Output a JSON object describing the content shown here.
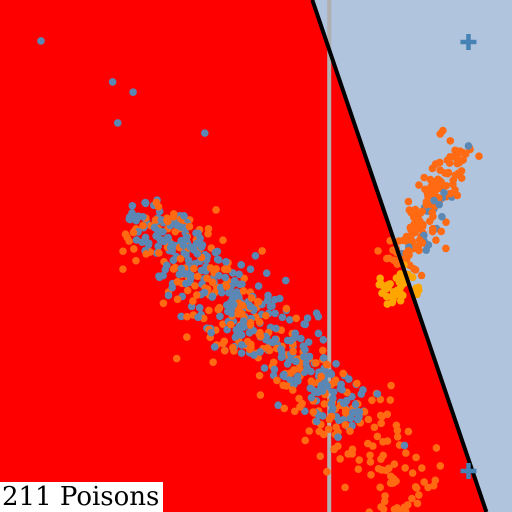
{
  "caption": "211 Poisons",
  "chart_data": {
    "type": "scatter",
    "title": "",
    "xlabel": "",
    "ylabel": "",
    "xlim": [
      0,
      100
    ],
    "ylim": [
      0,
      100
    ],
    "grid": false,
    "legend": "none",
    "regions": {
      "left_region_color": "#ff0000",
      "right_region_color": "#b0c4de"
    },
    "decision_boundary": {
      "from": [
        61,
        100
      ],
      "to": [
        95,
        0
      ],
      "color": "#000000"
    },
    "reference_line": {
      "x": 64.3,
      "color": "#b0b0b0"
    },
    "markers": [
      {
        "symbol": "cross",
        "x": 91.5,
        "y": 91.8,
        "color": "#4682b4"
      },
      {
        "symbol": "cross",
        "x": 91.5,
        "y": 8.0,
        "color": "#4682b4"
      }
    ],
    "clusters": [
      {
        "name": "",
        "color": "#ff6a13",
        "center": [
          55,
          30
        ],
        "along": [
          55,
          -55
        ],
        "spread": 4.5,
        "count": 320
      },
      {
        "name": "",
        "color": "#5b87b5",
        "center": [
          48,
          39
        ],
        "along": [
          44,
          -42
        ],
        "spread": 3.6,
        "count": 340
      },
      {
        "name": "",
        "color": "#ff6a13",
        "center": [
          84,
          60
        ],
        "along": [
          12,
          24
        ],
        "spread": 2.0,
        "count": 140
      },
      {
        "name": "",
        "color": "#5b87b5",
        "center": [
          84,
          56
        ],
        "along": [
          6,
          14
        ],
        "spread": 1.4,
        "count": 16
      },
      {
        "name": "",
        "color": "#ffa500",
        "center": [
          78,
          44
        ],
        "along": [
          7,
          3
        ],
        "spread": 1.4,
        "count": 40
      }
    ],
    "outliers": [
      {
        "x": 8,
        "y": 92,
        "color": "#5b87b5"
      },
      {
        "x": 22,
        "y": 84,
        "color": "#5b87b5"
      },
      {
        "x": 26,
        "y": 82,
        "color": "#5b87b5"
      },
      {
        "x": 23,
        "y": 76,
        "color": "#5b87b5"
      },
      {
        "x": 40,
        "y": 74,
        "color": "#5b87b5"
      },
      {
        "x": 91.5,
        "y": 71.5,
        "color": "#5b87b5"
      },
      {
        "x": 86.5,
        "y": 74.5,
        "color": "#ff6a13"
      },
      {
        "x": 86,
        "y": 9,
        "color": "#ff6a13"
      },
      {
        "x": 50,
        "y": 31,
        "color": "#ff6a13"
      },
      {
        "x": 79,
        "y": 13,
        "color": "#5b87b5"
      }
    ]
  }
}
